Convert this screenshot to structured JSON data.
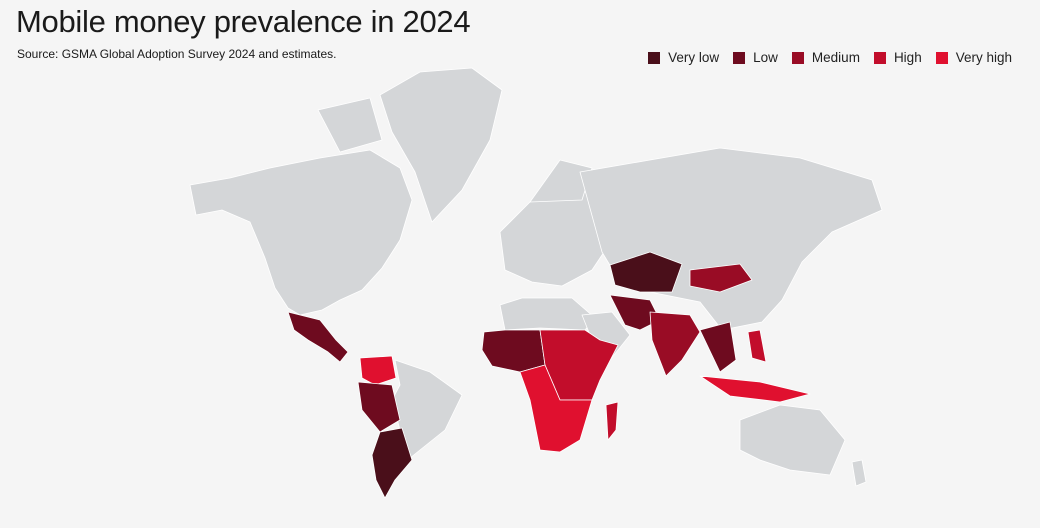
{
  "title": "Mobile money prevalence in 2024",
  "source": "Source: GSMA Global Adoption Survey 2024 and estimates.",
  "legend": [
    {
      "label": "Very low",
      "color": "#4a0f1a"
    },
    {
      "label": "Low",
      "color": "#6e0b1f"
    },
    {
      "label": "Medium",
      "color": "#990c25"
    },
    {
      "label": "High",
      "color": "#c20d2b"
    },
    {
      "label": "Very high",
      "color": "#e0102f"
    }
  ],
  "colors": {
    "background": "#f5f5f5",
    "no_data_land": "#d4d6d8"
  }
}
